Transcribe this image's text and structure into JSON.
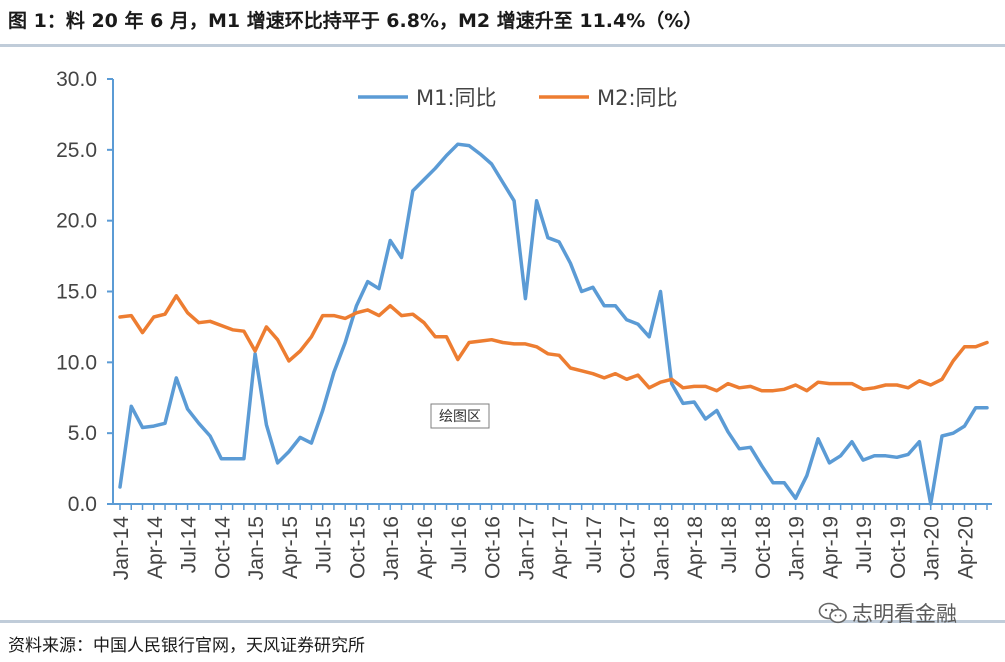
{
  "header": {
    "title": "图 1：料 20 年 6 月，M1 增速环比持平于 6.8%，M2 增速升至 11.4%（%）"
  },
  "footer": {
    "source": "资料来源：中国人民银行官网，天风证券研究所",
    "watermark": "志明看金融",
    "watermark_icon": "wechat-icon"
  },
  "plot_area_label": "绘图区",
  "chart_data": {
    "type": "line",
    "x_tick_labels": [
      "Jan-14",
      "Apr-14",
      "Jul-14",
      "Oct-14",
      "Jan-15",
      "Apr-15",
      "Jul-15",
      "Oct-15",
      "Jan-16",
      "Apr-16",
      "Jul-16",
      "Oct-16",
      "Jan-17",
      "Apr-17",
      "Jul-17",
      "Oct-17",
      "Jan-18",
      "Apr-18",
      "Jul-18",
      "Oct-18",
      "Jan-19",
      "Apr-19",
      "Jul-19",
      "Oct-19",
      "Jan-20",
      "Apr-20"
    ],
    "x_start": "Jan-14",
    "x_end": "Jun-20",
    "ylim": [
      0,
      30
    ],
    "y_ticks": [
      "0.0",
      "5.0",
      "10.0",
      "15.0",
      "20.0",
      "25.0",
      "30.0"
    ],
    "legend_position": "top-center",
    "grid": false,
    "series": [
      {
        "name": "M1:同比",
        "color": "#5b9bd5",
        "values": [
          1.2,
          6.9,
          5.4,
          5.5,
          5.7,
          8.9,
          6.7,
          5.7,
          4.8,
          3.2,
          3.2,
          3.2,
          10.6,
          5.6,
          2.9,
          3.7,
          4.7,
          4.3,
          6.6,
          9.3,
          11.4,
          14.0,
          15.7,
          15.2,
          18.6,
          17.4,
          22.1,
          22.9,
          23.7,
          24.6,
          25.4,
          25.3,
          24.7,
          24.0,
          22.7,
          21.4,
          14.5,
          21.4,
          18.8,
          18.5,
          17.0,
          15.0,
          15.3,
          14.0,
          14.0,
          13.0,
          12.7,
          11.8,
          15.0,
          8.5,
          7.1,
          7.2,
          6.0,
          6.6,
          5.1,
          3.9,
          4.0,
          2.7,
          1.5,
          1.5,
          0.4,
          2.0,
          4.6,
          2.9,
          3.4,
          4.4,
          3.1,
          3.4,
          3.4,
          3.3,
          3.5,
          4.4,
          0.0,
          4.8,
          5.0,
          5.5,
          6.8,
          6.8
        ],
        "last_value": 6.8
      },
      {
        "name": "M2:同比",
        "color": "#ed7d31",
        "values": [
          13.2,
          13.3,
          12.1,
          13.2,
          13.4,
          14.7,
          13.5,
          12.8,
          12.9,
          12.6,
          12.3,
          12.2,
          10.8,
          12.5,
          11.6,
          10.1,
          10.8,
          11.8,
          13.3,
          13.3,
          13.1,
          13.5,
          13.7,
          13.3,
          14.0,
          13.3,
          13.4,
          12.8,
          11.8,
          11.8,
          10.2,
          11.4,
          11.5,
          11.6,
          11.4,
          11.3,
          11.3,
          11.1,
          10.6,
          10.5,
          9.6,
          9.4,
          9.2,
          8.9,
          9.2,
          8.8,
          9.1,
          8.2,
          8.6,
          8.8,
          8.2,
          8.3,
          8.3,
          8.0,
          8.5,
          8.2,
          8.3,
          8.0,
          8.0,
          8.1,
          8.4,
          8.0,
          8.6,
          8.5,
          8.5,
          8.5,
          8.1,
          8.2,
          8.4,
          8.4,
          8.2,
          8.7,
          8.4,
          8.8,
          10.1,
          11.1,
          11.1,
          11.4
        ],
        "last_value": 11.4
      }
    ]
  }
}
